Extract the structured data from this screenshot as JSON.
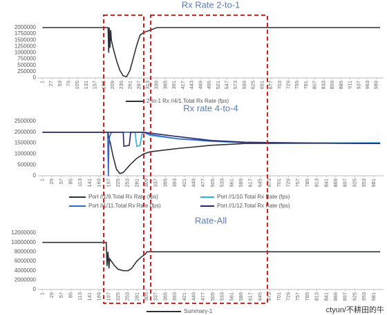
{
  "chart_data": [
    {
      "type": "line",
      "title": "Rx Rate 2-to-1",
      "ylim": [
        0,
        2000000
      ],
      "yticks": [
        0,
        250000,
        500000,
        750000,
        1000000,
        1250000,
        1500000,
        1750000,
        2000000
      ],
      "xlim": [
        -12,
        1010
      ],
      "xticks": [
        1,
        27,
        53,
        79,
        105,
        131,
        157,
        183,
        209,
        235,
        261,
        287,
        313,
        339,
        365,
        391,
        417,
        443,
        469,
        495,
        521,
        547,
        573,
        599,
        625,
        651,
        677,
        703,
        729,
        755,
        781,
        807,
        833,
        859,
        885,
        911,
        937,
        963,
        989
      ],
      "series": [
        {
          "name": "2-to-1 Rx //4/1.Total Rx Rate (fps)",
          "color": "#2b2f36",
          "x": [
            1,
            195,
            197,
            199,
            201,
            203,
            205,
            210,
            220,
            230,
            240,
            250,
            260,
            270,
            280,
            290,
            300,
            320,
            340,
            1000
          ],
          "values": [
            2000000,
            2000000,
            1000000,
            2000000,
            1200000,
            1900000,
            1500000,
            1200000,
            700000,
            300000,
            80000,
            50000,
            300000,
            800000,
            1300000,
            1700000,
            1800000,
            1900000,
            2000000,
            2000000
          ]
        }
      ]
    },
    {
      "type": "line",
      "title": "Rx rate 4-to-4",
      "ylim": [
        0,
        2500000
      ],
      "yticks": [
        0,
        500000,
        1000000,
        1500000,
        2000000,
        2500000
      ],
      "xlim": [
        -12,
        1010
      ],
      "xticks": [
        1,
        29,
        57,
        85,
        113,
        141,
        169,
        197,
        225,
        253,
        281,
        309,
        337,
        365,
        393,
        421,
        449,
        477,
        505,
        533,
        561,
        589,
        617,
        645,
        673,
        701,
        729,
        757,
        785,
        813,
        841,
        869,
        897,
        925,
        953,
        981
      ],
      "series": [
        {
          "name": "Port //1/9.Total Rx Rate (fps)",
          "color": "#2b2f36",
          "x": [
            1,
            195,
            198,
            202,
            210,
            220,
            230,
            240,
            260,
            280,
            300,
            320,
            400,
            500,
            600,
            1000
          ],
          "values": [
            2000000,
            2000000,
            1700000,
            1500000,
            900000,
            300000,
            100000,
            150000,
            500000,
            800000,
            1000000,
            1100000,
            1250000,
            1400000,
            1480000,
            1500000
          ]
        },
        {
          "name": "Port //1/10.Total Rx Rate (fps)",
          "color": "#2eaee0",
          "x": [
            1,
            275,
            280,
            290,
            295,
            300,
            320,
            400,
            500,
            600,
            800,
            1000
          ],
          "values": [
            2000000,
            2000000,
            1350000,
            1400000,
            1900000,
            2000000,
            1850000,
            1700000,
            1580000,
            1520000,
            1500000,
            1520000
          ]
        },
        {
          "name": "Port //1/11.Total Rx Rate (fps)",
          "color": "#3563c4",
          "x": [
            1,
            194,
            196,
            198,
            200,
            205,
            210,
            300,
            320,
            400,
            500,
            600,
            800,
            1000
          ],
          "values": [
            2000000,
            2000000,
            0,
            1600000,
            1800000,
            2000000,
            2000000,
            2000000,
            1900000,
            1700000,
            1600000,
            1520000,
            1500000,
            1480000
          ]
        },
        {
          "name": "Port //1/12.Total Rx Rate (fps)",
          "color": "#2a2466",
          "x": [
            1,
            240,
            242,
            258,
            262,
            300,
            400,
            500,
            600,
            800,
            1000
          ],
          "values": [
            2000000,
            2000000,
            1350000,
            1400000,
            2000000,
            2000000,
            1800000,
            1620000,
            1540000,
            1500000,
            1480000
          ]
        }
      ]
    },
    {
      "type": "line",
      "title": "Rate-All",
      "ylim": [
        0,
        12000000
      ],
      "yticks": [
        0,
        2000000,
        4000000,
        6000000,
        8000000,
        10000000,
        12000000
      ],
      "xlim": [
        -12,
        1010
      ],
      "xticks": [
        1,
        29,
        57,
        85,
        113,
        141,
        169,
        197,
        225,
        253,
        281,
        309,
        337,
        365,
        393,
        421,
        449,
        477,
        505,
        533,
        561,
        589,
        617,
        645,
        673,
        701,
        729,
        757,
        785,
        813,
        841,
        869,
        897,
        925,
        953,
        981
      ],
      "series": [
        {
          "name": "Summary-1",
          "color": "#2b2f36",
          "x": [
            1,
            190,
            192,
            195,
            198,
            200,
            205,
            215,
            225,
            240,
            255,
            265,
            280,
            295,
            305,
            310,
            1000
          ],
          "values": [
            10000000,
            10000000,
            5000000,
            8000000,
            4500000,
            6500000,
            6000000,
            5000000,
            4300000,
            4000000,
            4000000,
            4500000,
            6000000,
            7000000,
            7500000,
            8000000,
            8000000
          ]
        }
      ]
    }
  ],
  "watermark": "ctyun/不耕田的牛"
}
